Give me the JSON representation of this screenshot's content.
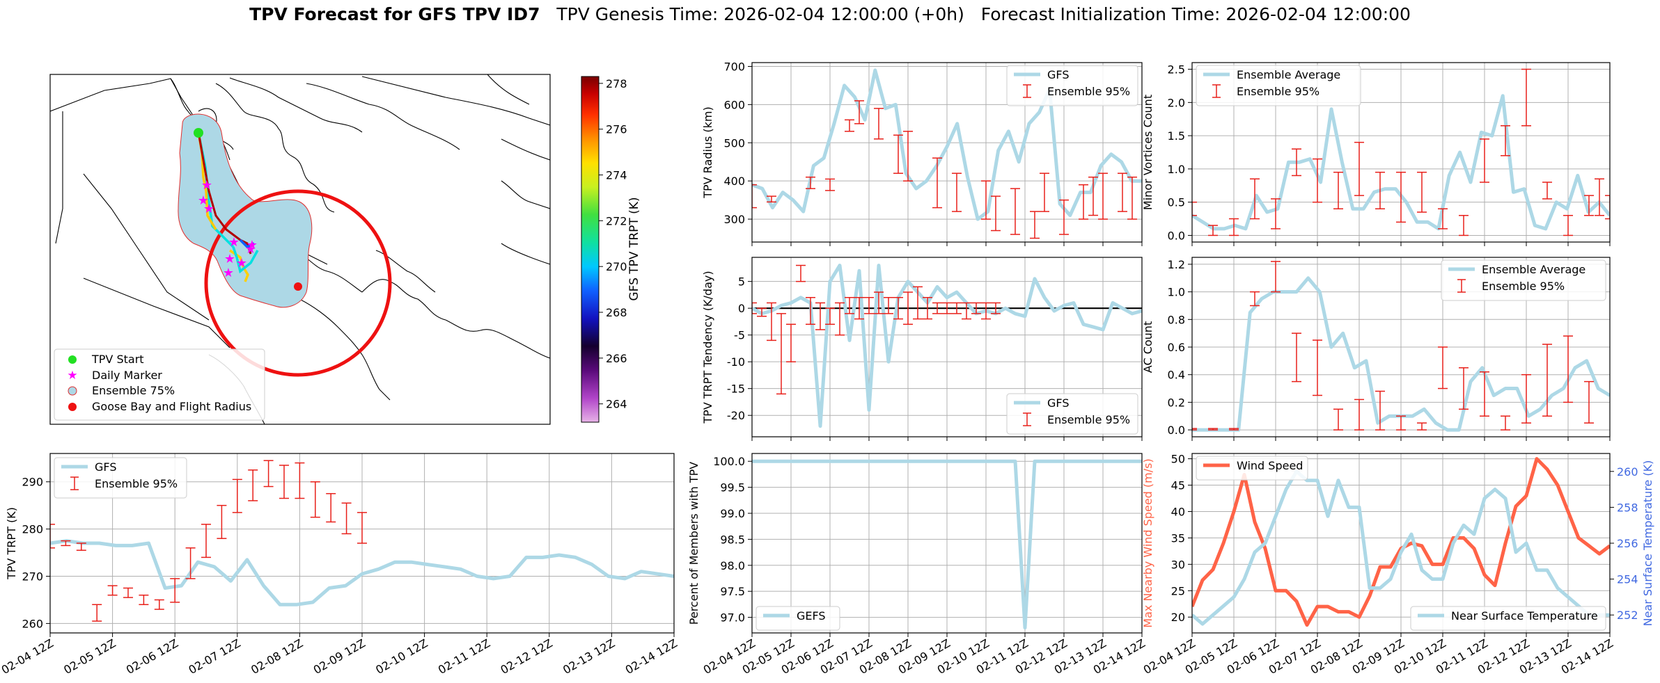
{
  "header": {
    "title_bold": "TPV Forecast for GFS TPV ID7",
    "title_rest": "   TPV Genesis Time: 2026-02-04 12:00:00 (+0h)   Forecast Initialization Time: 2026-02-04 12:00:00"
  },
  "colors": {
    "gfs": "#add8e6",
    "err": "#e8201a",
    "wind": "#ff6347",
    "temp_axis": "#4169e1",
    "grid": "#b0b0b0",
    "ensemble_fill": "#add8e6",
    "start": "#22e022",
    "marker": "#ff00ff",
    "goose": "#ee1111"
  },
  "map": {
    "legend": [
      "TPV Start",
      "Daily Marker",
      "Ensemble 75%",
      "Goose Bay and Flight Radius"
    ],
    "colorbar": {
      "label": "GFS TPV TRPT (K)",
      "ticks": [
        "278",
        "276",
        "274",
        "272",
        "270",
        "268",
        "266",
        "264"
      ]
    }
  },
  "x_ticks": [
    "02-04 12Z",
    "02-05 12Z",
    "02-06 12Z",
    "02-07 12Z",
    "02-08 12Z",
    "02-09 12Z",
    "02-10 12Z",
    "02-11 12Z",
    "02-12 12Z",
    "02-13 12Z",
    "02-14 12Z"
  ],
  "chart_data": [
    {
      "id": "radius",
      "type": "line",
      "ylabel": "TPV Radius (km)",
      "ylim": [
        240,
        710
      ],
      "yticks": [
        300,
        400,
        500,
        600,
        700
      ],
      "grid": true,
      "legend": "top-right",
      "series": [
        {
          "name": "GFS",
          "values": [
            390,
            380,
            330,
            370,
            350,
            320,
            440,
            460,
            550,
            650,
            620,
            560,
            690,
            590,
            600,
            420,
            380,
            400,
            440,
            490,
            550,
            410,
            300,
            320,
            480,
            530,
            450,
            550,
            580,
            640,
            340,
            310,
            370,
            370,
            440,
            470,
            450,
            400,
            400
          ]
        },
        {
          "name": "Ensemble 95%",
          "type": "errorbar",
          "ranges": [
            [
              330,
              390
            ],
            [
              345,
              360
            ],
            [
              380,
              410
            ],
            [
              375,
              405
            ],
            [
              530,
              560
            ],
            [
              550,
              610
            ],
            [
              510,
              590
            ],
            [
              420,
              520
            ],
            [
              400,
              530
            ],
            [
              330,
              460
            ],
            [
              320,
              420
            ],
            [
              300,
              400
            ],
            [
              270,
              360
            ],
            [
              260,
              380
            ],
            [
              250,
              320
            ],
            [
              320,
              420
            ],
            [
              260,
              350
            ],
            [
              300,
              390
            ],
            [
              310,
              410
            ],
            [
              300,
              420
            ],
            [
              320,
              420
            ],
            [
              300,
              410
            ]
          ]
        }
      ],
      "err_x": [
        0,
        2,
        6,
        8,
        10,
        11,
        13,
        15,
        16,
        19,
        21,
        24,
        25,
        27,
        29,
        30,
        32,
        34,
        35,
        36,
        38,
        39
      ]
    },
    {
      "id": "tendency",
      "type": "line",
      "ylabel": "TPV TRPT Tendency (K/day)",
      "ylim": [
        -24,
        9.5
      ],
      "yticks": [
        5,
        0,
        -5,
        -10,
        -15,
        -20
      ],
      "grid": true,
      "legend": "bottom-right",
      "series": [
        {
          "name": "GFS",
          "values": [
            0,
            -1,
            -0.5,
            0.5,
            1,
            2,
            1,
            -22,
            5,
            8,
            -6,
            7,
            -19,
            8,
            -10,
            2,
            5,
            3,
            1,
            4,
            2,
            3,
            1,
            -1,
            -0.5,
            -1,
            0,
            -1,
            -1.5,
            5.5,
            2,
            -0.5,
            0.5,
            1,
            -3,
            -3.5,
            -4,
            1,
            0,
            -1,
            -0.5
          ]
        },
        {
          "name": "Ensemble 95%",
          "type": "errorbar",
          "ranges": [
            [
              -1,
              1
            ],
            [
              -1.5,
              0
            ],
            [
              -6,
              1
            ],
            [
              -16,
              -1
            ],
            [
              -10,
              -3
            ],
            [
              5,
              8
            ],
            [
              -3,
              2
            ],
            [
              -4,
              1
            ],
            [
              -3,
              0
            ],
            [
              -5,
              1
            ],
            [
              -1,
              2
            ],
            [
              -2,
              2
            ],
            [
              -1,
              2
            ],
            [
              -1,
              3
            ],
            [
              -1,
              2
            ],
            [
              -2,
              2
            ],
            [
              -3,
              3
            ],
            [
              -2,
              4
            ],
            [
              -2,
              2
            ],
            [
              -1,
              1
            ],
            [
              -1,
              1
            ],
            [
              -1,
              1
            ],
            [
              -2,
              1
            ],
            [
              -1,
              1
            ],
            [
              -2,
              1
            ],
            [
              -1,
              1
            ]
          ]
        }
      ],
      "err_x": [
        0,
        1,
        2,
        3,
        4,
        5,
        6,
        7,
        8,
        9,
        10,
        11,
        12,
        13,
        14,
        15,
        16,
        17,
        18,
        19,
        20,
        21,
        22,
        23,
        24,
        25
      ]
    },
    {
      "id": "trpt",
      "type": "line",
      "ylabel": "TPV TRPT (K)",
      "ylim": [
        258,
        296
      ],
      "yticks": [
        260,
        270,
        280,
        290
      ],
      "grid": true,
      "legend": "top-left",
      "series": [
        {
          "name": "GFS",
          "values": [
            277,
            277.5,
            277,
            277,
            276.5,
            276.5,
            277,
            267.5,
            268,
            273,
            272,
            269,
            273.5,
            268,
            264,
            264,
            264.5,
            267.5,
            268,
            270.5,
            271.5,
            273,
            273,
            272.5,
            272,
            271.5,
            270,
            269.5,
            270,
            274,
            274,
            274.5,
            274,
            272.5,
            270,
            269.5,
            271,
            270.5,
            270
          ]
        },
        {
          "name": "Ensemble 95%",
          "type": "errorbar",
          "ranges": [
            [
              276,
              281
            ],
            [
              276.5,
              277.5
            ],
            [
              275.5,
              277
            ],
            [
              260.5,
              264
            ],
            [
              266,
              268
            ],
            [
              265.5,
              267.5
            ],
            [
              264,
              266
            ],
            [
              263,
              265
            ],
            [
              264.5,
              269.5
            ],
            [
              269.5,
              276
            ],
            [
              274,
              281
            ],
            [
              278,
              285
            ],
            [
              283.5,
              290.5
            ],
            [
              286,
              292.5
            ],
            [
              289,
              294.5
            ],
            [
              286.5,
              293.5
            ],
            [
              286.5,
              294
            ],
            [
              282.5,
              290
            ],
            [
              281.5,
              287.5
            ],
            [
              279,
              285.5
            ],
            [
              277,
              283.5
            ]
          ]
        }
      ],
      "err_x": [
        0,
        1,
        2,
        3,
        4,
        5,
        6,
        7,
        8,
        9,
        10,
        11,
        12,
        13,
        14,
        15,
        16,
        17,
        18,
        19,
        20
      ]
    },
    {
      "id": "percent",
      "type": "line",
      "ylabel": "Percent of Members with TPV",
      "ylim": [
        96.7,
        100.15
      ],
      "yticks": [
        100.0,
        99.5,
        99.0,
        98.5,
        98.0,
        97.5,
        97.0
      ],
      "grid": true,
      "legend": "bottom-left",
      "series": [
        {
          "name": "GEFS",
          "values": [
            100,
            100,
            100,
            100,
            100,
            100,
            100,
            100,
            100,
            100,
            100,
            100,
            100,
            100,
            100,
            100,
            100,
            100,
            100,
            100,
            100,
            100,
            100,
            100,
            100,
            100,
            100,
            100,
            96.8,
            100,
            100,
            100,
            100,
            100,
            100,
            100,
            100,
            100,
            100,
            100,
            100
          ]
        }
      ]
    },
    {
      "id": "minor",
      "type": "line",
      "ylabel": "Minor Vortices Count",
      "ylim": [
        -0.1,
        2.6
      ],
      "yticks": [
        0.0,
        0.5,
        1.0,
        1.5,
        2.0,
        2.5
      ],
      "grid": true,
      "legend": "top-left",
      "series": [
        {
          "name": "Ensemble Average",
          "values": [
            0.3,
            0.2,
            0.1,
            0.1,
            0.15,
            0.1,
            0.6,
            0.35,
            0.4,
            1.1,
            1.1,
            1.15,
            0.8,
            1.9,
            1.1,
            0.4,
            0.4,
            0.65,
            0.7,
            0.7,
            0.5,
            0.2,
            0.2,
            0.1,
            0.9,
            1.25,
            0.8,
            1.55,
            1.5,
            2.1,
            0.65,
            0.7,
            0.15,
            0.1,
            0.5,
            0.4,
            0.9,
            0.35,
            0.5,
            0.3
          ]
        },
        {
          "name": "Ensemble 95%",
          "type": "errorbar",
          "ranges": [
            [
              0.3,
              0.5
            ],
            [
              0,
              0.15
            ],
            [
              0,
              0.25
            ],
            [
              0.25,
              0.85
            ],
            [
              0.1,
              0.55
            ],
            [
              0.9,
              1.3
            ],
            [
              0.5,
              1.15
            ],
            [
              0.4,
              0.95
            ],
            [
              0.6,
              1.4
            ],
            [
              0.4,
              0.95
            ],
            [
              0.2,
              0.95
            ],
            [
              0.35,
              0.95
            ],
            [
              0.1,
              0.4
            ],
            [
              0,
              0.3
            ],
            [
              0.8,
              1.45
            ],
            [
              1.2,
              1.65
            ],
            [
              1.65,
              2.5
            ],
            [
              0.55,
              0.8
            ],
            [
              0,
              0.3
            ],
            [
              0.3,
              0.6
            ],
            [
              0.3,
              0.85
            ],
            [
              0.25,
              0.6
            ]
          ]
        }
      ],
      "err_x": [
        0,
        2,
        4,
        6,
        8,
        10,
        12,
        14,
        16,
        18,
        20,
        22,
        24,
        26,
        28,
        30,
        32,
        34,
        36,
        38,
        39,
        40
      ]
    },
    {
      "id": "ac",
      "type": "line",
      "ylabel": "AC Count",
      "ylim": [
        -0.05,
        1.25
      ],
      "yticks": [
        0.0,
        0.2,
        0.4,
        0.6,
        0.8,
        1.0,
        1.2
      ],
      "grid": true,
      "legend": "top-right",
      "series": [
        {
          "name": "Ensemble Average",
          "values": [
            0,
            0,
            0,
            0,
            0,
            0.85,
            0.95,
            1.0,
            1.0,
            1.0,
            1.1,
            1.0,
            0.6,
            0.7,
            0.45,
            0.5,
            0.05,
            0.1,
            0.1,
            0.1,
            0.15,
            0.05,
            0.0,
            0.0,
            0.35,
            0.45,
            0.25,
            0.3,
            0.3,
            0.1,
            0.15,
            0.25,
            0.3,
            0.45,
            0.5,
            0.3,
            0.25
          ]
        },
        {
          "name": "Ensemble 95%",
          "type": "errorbar",
          "ranges": [
            [
              0,
              0.01
            ],
            [
              0,
              0.01
            ],
            [
              0,
              0.01
            ],
            [
              0.9,
              1.0
            ],
            [
              1.0,
              1.22
            ],
            [
              0.35,
              0.7
            ],
            [
              0.25,
              0.65
            ],
            [
              0,
              0.15
            ],
            [
              0,
              0.22
            ],
            [
              0,
              0.28
            ],
            [
              0,
              0.1
            ],
            [
              0,
              0.05
            ],
            [
              0.3,
              0.6
            ],
            [
              0.15,
              0.45
            ],
            [
              0.1,
              0.42
            ],
            [
              0,
              0.1
            ],
            [
              0.05,
              0.4
            ],
            [
              0.1,
              0.62
            ],
            [
              0.2,
              0.68
            ],
            [
              0.05,
              0.35
            ]
          ]
        }
      ],
      "err_x": [
        0,
        2,
        4,
        6,
        8,
        10,
        12,
        14,
        16,
        18,
        20,
        22,
        24,
        26,
        28,
        30,
        32,
        34,
        36,
        38
      ]
    },
    {
      "id": "wind_temp",
      "type": "line",
      "ylabel": "Max Nearby Wind Speed (m/s)",
      "ylabel_right": "Near Surface Temperature (K)",
      "ylim": [
        17,
        51
      ],
      "ylim_right": [
        251,
        261
      ],
      "yticks": [
        20,
        25,
        30,
        35,
        40,
        45,
        50
      ],
      "yticks_right": [
        252,
        254,
        256,
        258,
        260
      ],
      "grid": true,
      "series": [
        {
          "name": "Wind Speed",
          "axis": "left",
          "values": [
            22,
            27,
            29,
            34,
            40,
            47,
            38,
            33,
            25,
            25,
            23,
            18.5,
            22,
            22,
            21,
            21,
            20,
            24,
            29.5,
            29.5,
            33,
            34,
            33.5,
            30,
            30,
            35,
            35,
            33,
            28,
            26,
            34,
            41,
            43,
            50,
            48,
            45,
            40,
            35,
            33.5,
            32,
            33.5
          ]
        },
        {
          "name": "Near Surface Temperature",
          "axis": "right",
          "values": [
            252,
            251.5,
            252,
            252.5,
            253,
            254,
            255.5,
            256,
            257.5,
            259,
            260,
            259.5,
            259.5,
            257.5,
            259.5,
            258,
            258,
            253.5,
            253.5,
            254,
            255.5,
            256.5,
            254.5,
            254,
            254,
            256,
            257,
            256.5,
            258.5,
            259,
            258.5,
            255.5,
            256,
            254.5,
            254.5,
            253.5,
            253,
            252.5,
            252,
            252,
            252
          ]
        }
      ]
    }
  ]
}
